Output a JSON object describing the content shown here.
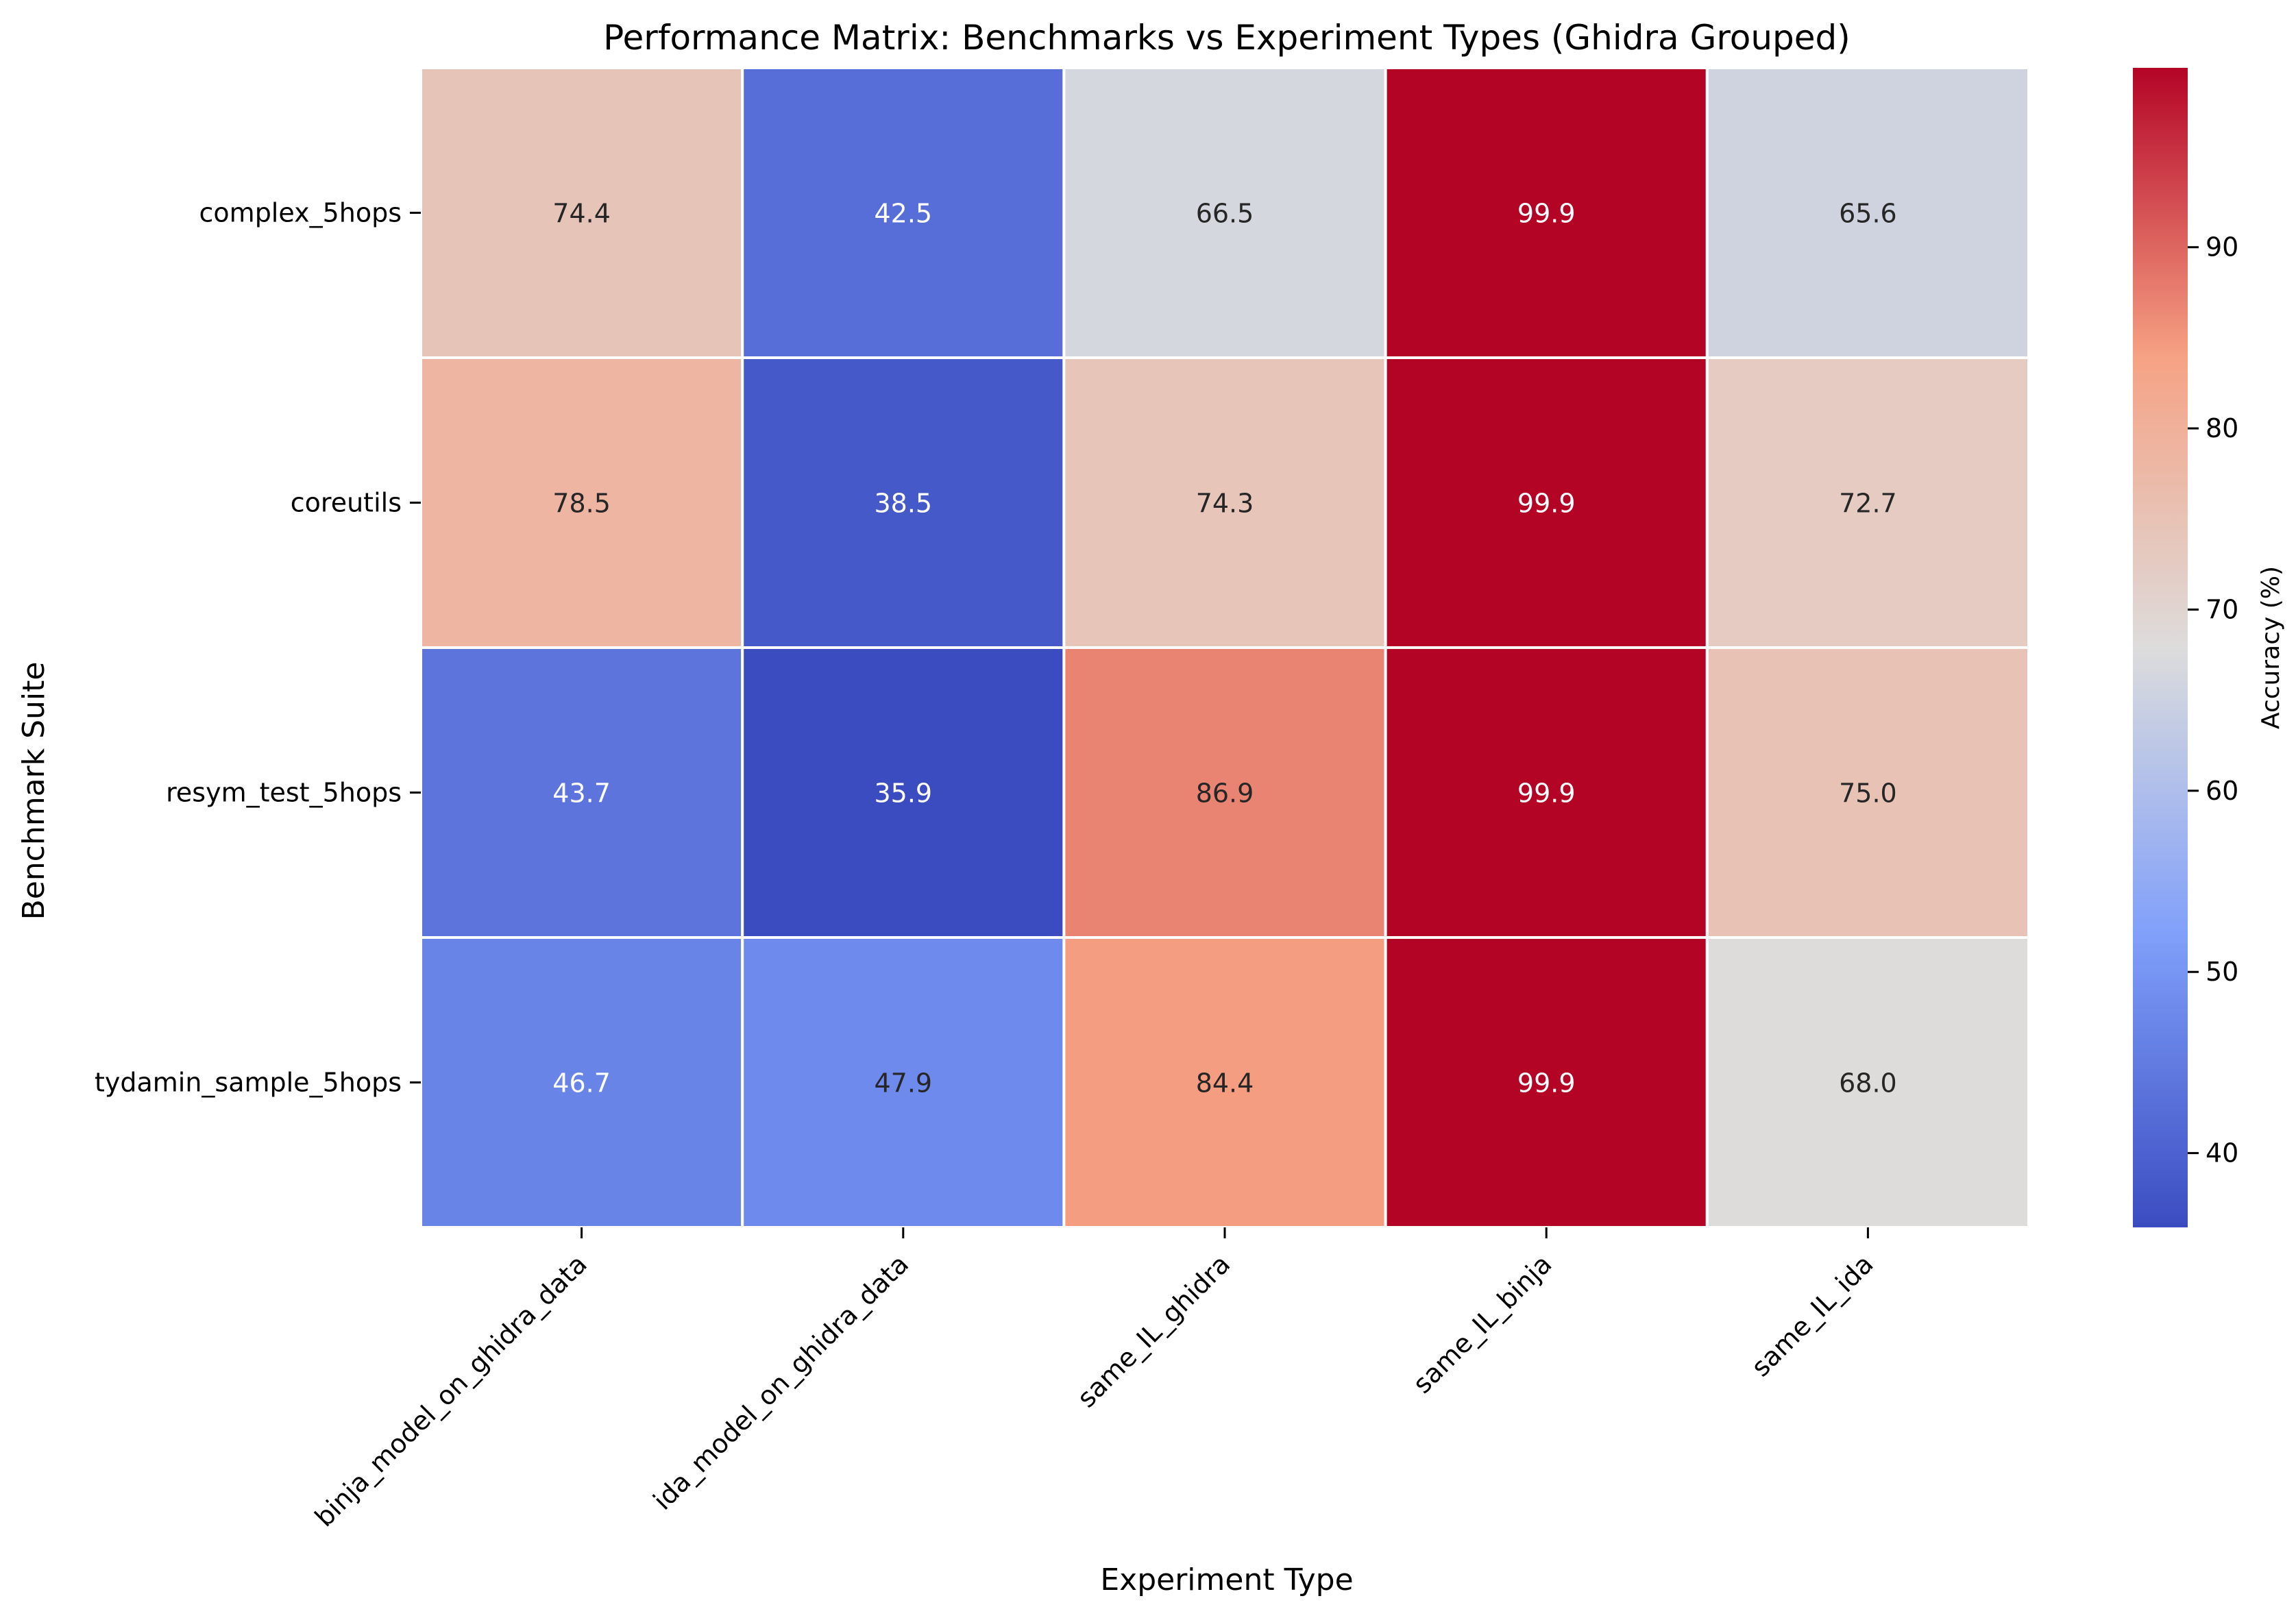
{
  "chart_data": {
    "type": "heatmap",
    "title": "Performance Matrix: Benchmarks vs Experiment Types (Ghidra Grouped)",
    "xlabel": "Experiment Type",
    "ylabel": "Benchmark Suite",
    "x_categories": [
      "binja_model_on_ghidra_data",
      "ida_model_on_ghidra_data",
      "same_IL_ghidra",
      "same_IL_binja",
      "same_IL_ida"
    ],
    "y_categories": [
      "complex_5hops",
      "coreutils",
      "resym_test_5hops",
      "tydamin_sample_5hops"
    ],
    "values": [
      [
        74.4,
        42.5,
        66.5,
        99.9,
        65.6
      ],
      [
        78.5,
        38.5,
        74.3,
        99.9,
        72.7
      ],
      [
        43.7,
        35.9,
        86.9,
        99.9,
        75.0
      ],
      [
        46.7,
        47.9,
        84.4,
        99.9,
        68.0
      ]
    ],
    "colorbar": {
      "label": "Accuracy (%)",
      "min": 35.9,
      "max": 99.9,
      "ticks": [
        40,
        50,
        60,
        70,
        80,
        90
      ],
      "colormap": "coolwarm",
      "cold_color": "#3b4cc0",
      "mid_color": "#dddcdc",
      "hot_color": "#b40426"
    },
    "annotation_format": "{:.1f}",
    "gridlines": "white cell separators"
  }
}
